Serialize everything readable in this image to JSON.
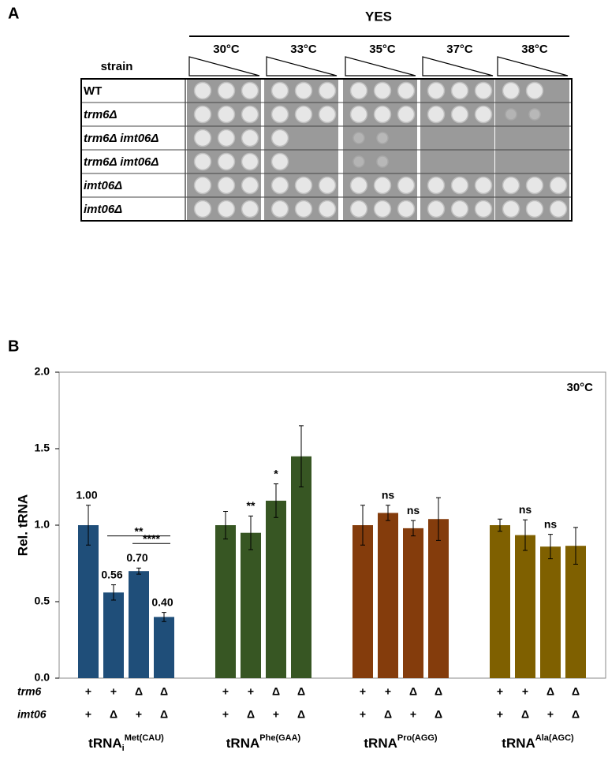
{
  "panel_a": {
    "panel_label": "A",
    "condition": "YES",
    "strain_header": "strain",
    "temperatures": [
      "30°C",
      "33°C",
      "35°C",
      "37°C",
      "38°C"
    ],
    "strains": [
      "WT",
      "trm6Δ",
      "trm6Δ imt06Δ",
      "trm6Δ imt06Δ",
      "imt06Δ",
      "imt06Δ"
    ]
  },
  "chart_data": {
    "type": "bar",
    "panel_label": "B",
    "annotation": "30°C",
    "ylabel": "Rel. tRNA",
    "ylim": [
      0,
      2
    ],
    "yticks": [
      {
        "value": 0,
        "label": "0.0"
      },
      {
        "value": 0.5,
        "label": "0.5"
      },
      {
        "value": 1,
        "label": "1.0"
      },
      {
        "value": 1.5,
        "label": "1.5"
      },
      {
        "value": 2,
        "label": "2.0"
      }
    ],
    "row_labels": [
      "trm6",
      "imt06"
    ],
    "genotypes": [
      [
        "+",
        "+",
        "Δ",
        "Δ"
      ],
      [
        "+",
        "Δ",
        "+",
        "Δ"
      ]
    ],
    "brackets": [
      "**",
      "****"
    ],
    "groups": [
      {
        "name": "tRNA",
        "sub": "i",
        "sup": "Met(CAU)",
        "color": "#1f4e79",
        "values": [
          1.0,
          0.56,
          0.7,
          0.4
        ],
        "errors": [
          0.13,
          0.05,
          0.02,
          0.03
        ],
        "value_labels": [
          "1.00",
          "0.56",
          "0.70",
          "0.40"
        ],
        "annotations": [
          null,
          null,
          null,
          null
        ]
      },
      {
        "name": "tRNA",
        "sup": "Phe(GAA)",
        "color": "#375623",
        "values": [
          1.0,
          0.95,
          1.16,
          1.45
        ],
        "errors": [
          0.09,
          0.11,
          0.11,
          0.2
        ],
        "annotations": [
          null,
          "**",
          "*",
          null
        ]
      },
      {
        "name": "tRNA",
        "sup": "Pro(AGG)",
        "color": "#843c0c",
        "values": [
          1.0,
          1.08,
          0.98,
          1.04
        ],
        "errors": [
          0.13,
          0.05,
          0.05,
          0.14
        ],
        "annotations": [
          null,
          "ns",
          "ns",
          null
        ]
      },
      {
        "name": "tRNA",
        "sup": "Ala(AGC)",
        "color": "#7f6000",
        "values": [
          1.0,
          0.935,
          0.86,
          0.865
        ],
        "errors": [
          0.04,
          0.1,
          0.08,
          0.12
        ],
        "annotations": [
          null,
          "ns",
          "ns",
          null
        ]
      }
    ]
  }
}
